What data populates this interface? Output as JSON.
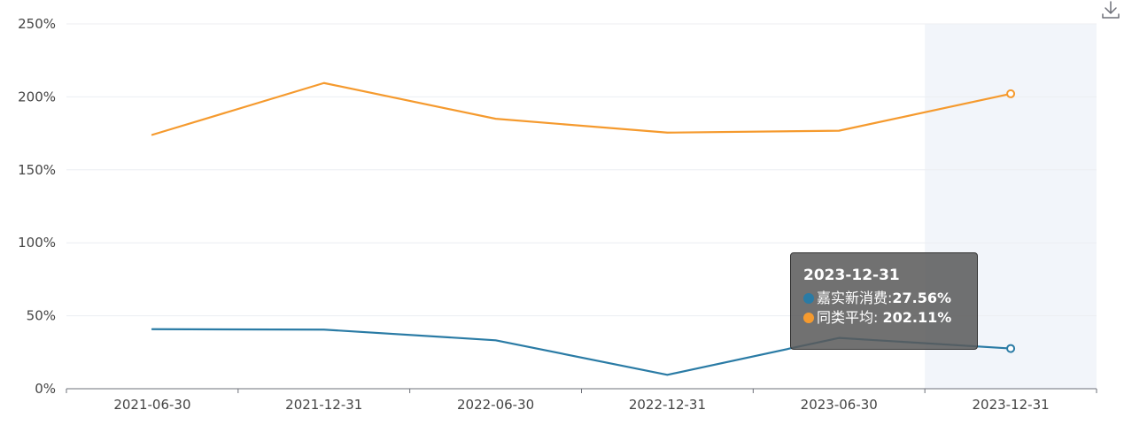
{
  "chart_data": {
    "type": "line",
    "categories": [
      "2021-06-30",
      "2021-12-31",
      "2022-06-30",
      "2022-12-31",
      "2023-06-30",
      "2023-12-31"
    ],
    "series": [
      {
        "name": "嘉实新消费",
        "color": "#2a7ba5",
        "values": [
          40.8,
          40.5,
          33.2,
          9.5,
          34.8,
          27.56
        ]
      },
      {
        "name": "同类平均",
        "color": "#f59a2e",
        "values": [
          174.0,
          209.5,
          185.0,
          175.5,
          176.8,
          202.11
        ]
      }
    ],
    "ylim": [
      0,
      250
    ],
    "yticks": [
      0,
      50,
      100,
      150,
      200,
      250
    ],
    "ytick_labels": [
      "0%",
      "50%",
      "100%",
      "150%",
      "200%",
      "250%"
    ],
    "grid": true,
    "highlighted_category_index": 5
  },
  "tooltip": {
    "title": "2023-12-31",
    "row1_label": "嘉实新消费:",
    "row1_value": "27.56%",
    "row2_label": "同类平均: ",
    "row2_value": "202.11%"
  },
  "toolbar": {
    "download_icon": "download-icon"
  }
}
